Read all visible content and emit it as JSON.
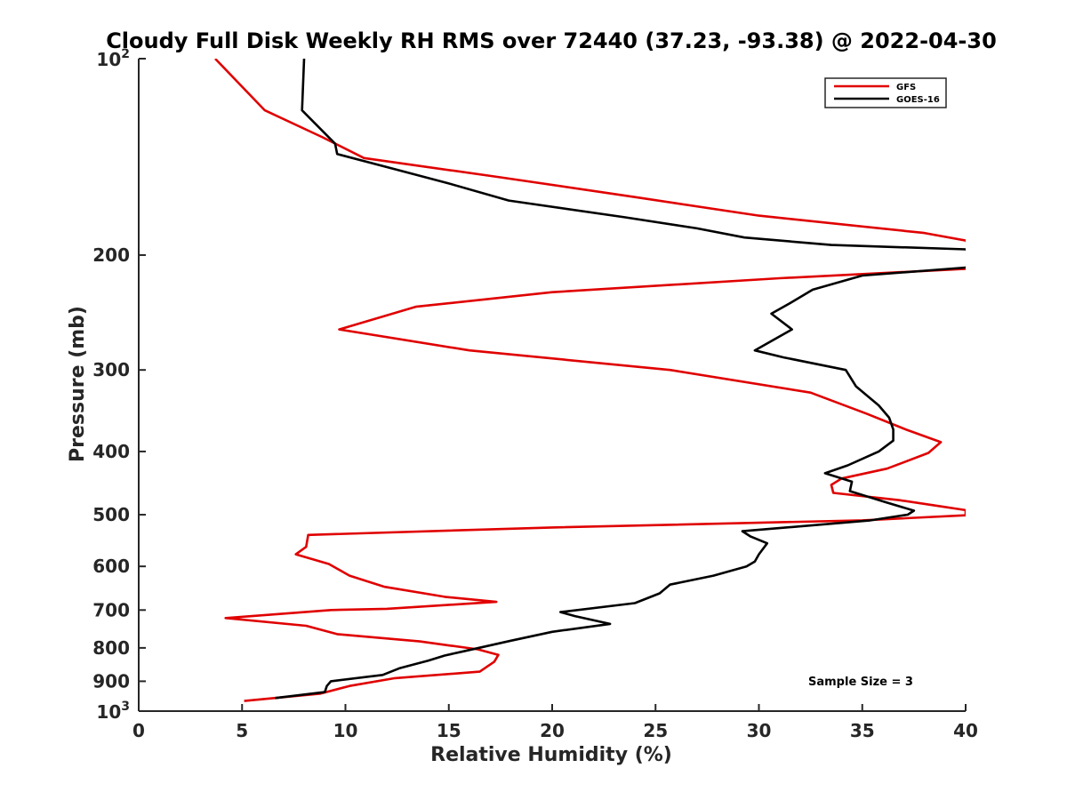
{
  "chart_data": {
    "type": "line",
    "title": "Cloudy Full Disk Weekly RH RMS over 72440 (37.23, -93.38) @ 2022-04-30",
    "xlabel": "Relative Humidity (%)",
    "ylabel": "Pressure (mb)",
    "xlim": [
      0,
      40
    ],
    "ylim": [
      100,
      1000
    ],
    "yscale": "log",
    "y_reversed": true,
    "grid": false,
    "legend_position": "top-right",
    "x_ticks": [
      "0",
      "5",
      "10",
      "15",
      "20",
      "25",
      "30",
      "35",
      "40"
    ],
    "y_ticks": [
      {
        "value": 100,
        "base": "10",
        "exp": "2"
      },
      {
        "value": 200,
        "label": "200"
      },
      {
        "value": 300,
        "label": "300"
      },
      {
        "value": 400,
        "label": "400"
      },
      {
        "value": 500,
        "label": "500"
      },
      {
        "value": 600,
        "label": "600"
      },
      {
        "value": 700,
        "label": "700"
      },
      {
        "value": 800,
        "label": "800"
      },
      {
        "value": 900,
        "label": "900"
      },
      {
        "value": 1000,
        "base": "10",
        "exp": "3"
      }
    ],
    "annotation": "Sample Size = 3",
    "series": [
      {
        "name": "GFS",
        "color": "#e00000",
        "points": [
          [
            3.7,
            100
          ],
          [
            6.1,
            120
          ],
          [
            8.9,
            132
          ],
          [
            10.9,
            142
          ],
          [
            17.5,
            152
          ],
          [
            24,
            163
          ],
          [
            30,
            174
          ],
          [
            38,
            185
          ],
          [
            40,
            190
          ],
          [
            40.5,
            198
          ],
          [
            40,
            210
          ],
          [
            31,
            217
          ],
          [
            20,
            228
          ],
          [
            13.4,
            240
          ],
          [
            9.7,
            260
          ],
          [
            16,
            280
          ],
          [
            25.7,
            300
          ],
          [
            32.5,
            325
          ],
          [
            35.2,
            350
          ],
          [
            37.1,
            370
          ],
          [
            38.8,
            387
          ],
          [
            38.2,
            402
          ],
          [
            36.2,
            425
          ],
          [
            34,
            440
          ],
          [
            33.5,
            450
          ],
          [
            33.6,
            463
          ],
          [
            36.8,
            475
          ],
          [
            38.7,
            485
          ],
          [
            40,
            492
          ],
          [
            40,
            501
          ],
          [
            35,
            510
          ],
          [
            20,
            523
          ],
          [
            8.2,
            537
          ],
          [
            8.1,
            560
          ],
          [
            7.6,
            575
          ],
          [
            9.2,
            595
          ],
          [
            10.2,
            620
          ],
          [
            11.9,
            645
          ],
          [
            14.8,
            668
          ],
          [
            17.3,
            680
          ],
          [
            12,
            697
          ],
          [
            9.3,
            700
          ],
          [
            4.2,
            720
          ],
          [
            8.1,
            740
          ],
          [
            9.6,
            762
          ],
          [
            13.6,
            782
          ],
          [
            16.4,
            804
          ],
          [
            17.4,
            820
          ],
          [
            17.2,
            840
          ],
          [
            16.5,
            870
          ],
          [
            12.4,
            890
          ],
          [
            10.2,
            915
          ],
          [
            8.8,
            940
          ],
          [
            5.1,
            965
          ]
        ]
      },
      {
        "name": "GOES-16",
        "color": "#000000",
        "points": [
          [
            8.0,
            100
          ],
          [
            7.9,
            120
          ],
          [
            9.5,
            135
          ],
          [
            9.6,
            140
          ],
          [
            12.5,
            148
          ],
          [
            14.9,
            155
          ],
          [
            17.9,
            165
          ],
          [
            23.5,
            175
          ],
          [
            27,
            182
          ],
          [
            29.3,
            188
          ],
          [
            33.5,
            193
          ],
          [
            40,
            196
          ],
          [
            40.5,
            203
          ],
          [
            40,
            209
          ],
          [
            35,
            215
          ],
          [
            32.6,
            226
          ],
          [
            31.5,
            237
          ],
          [
            30.6,
            246
          ],
          [
            31.6,
            260
          ],
          [
            29.8,
            280
          ],
          [
            31.2,
            287
          ],
          [
            34.2,
            300
          ],
          [
            34.7,
            318
          ],
          [
            35.8,
            340
          ],
          [
            36.3,
            355
          ],
          [
            36.5,
            370
          ],
          [
            36.5,
            385
          ],
          [
            35.8,
            400
          ],
          [
            34.3,
            420
          ],
          [
            33.2,
            432
          ],
          [
            34.5,
            445
          ],
          [
            34.4,
            460
          ],
          [
            36.1,
            478
          ],
          [
            37.5,
            493
          ],
          [
            37.2,
            500
          ],
          [
            35.4,
            510
          ],
          [
            29.2,
            530
          ],
          [
            29.6,
            540
          ],
          [
            30.4,
            553
          ],
          [
            30,
            575
          ],
          [
            29.8,
            590
          ],
          [
            29.4,
            600
          ],
          [
            27.8,
            620
          ],
          [
            25.7,
            640
          ],
          [
            25.2,
            660
          ],
          [
            24,
            683
          ],
          [
            20.4,
            705
          ],
          [
            21.1,
            715
          ],
          [
            22.8,
            735
          ],
          [
            20,
            756
          ],
          [
            18,
            780
          ],
          [
            15.7,
            810
          ],
          [
            14.8,
            822
          ],
          [
            14,
            837
          ],
          [
            12.6,
            860
          ],
          [
            11.8,
            880
          ],
          [
            9.3,
            900
          ],
          [
            9.1,
            915
          ],
          [
            9.0,
            935
          ],
          [
            6.6,
            955
          ]
        ]
      }
    ]
  }
}
